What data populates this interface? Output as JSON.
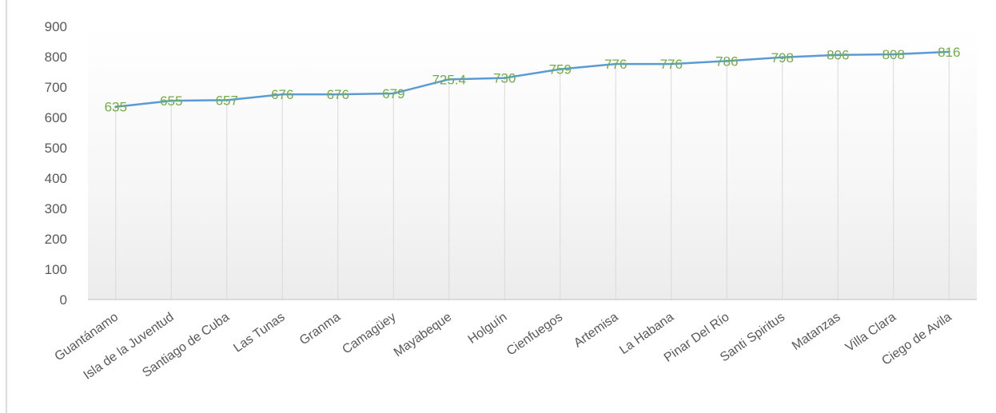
{
  "chart_data": {
    "type": "line",
    "title": "",
    "xlabel": "",
    "ylabel": "",
    "categories": [
      "Guantánamo",
      "Isla de la Juventud",
      "Santiago de Cuba",
      "Las Tunas",
      "Granma",
      "Camagüey",
      "Mayabeque",
      "Holguín",
      "Cienfuegos",
      "Artemisa",
      "La Habana",
      "Pinar Del Río",
      "Santi Spiritus",
      "Matanzas",
      "Villa Clara",
      "Ciego de Avila"
    ],
    "series": [
      {
        "values": [
          635,
          655,
          657,
          676,
          676,
          679,
          725.4,
          730,
          759,
          776,
          776,
          786,
          798,
          806,
          808,
          816
        ],
        "data_labels": [
          "635",
          "655",
          "657",
          "676",
          "676",
          "679",
          "725.4",
          "730",
          "759",
          "776",
          "776",
          "786",
          "798",
          "806",
          "808",
          "816"
        ]
      }
    ],
    "ylim": [
      0,
      900
    ],
    "y_ticks": [
      "0",
      "100",
      "200",
      "300",
      "400",
      "500",
      "600",
      "700",
      "800",
      "900"
    ],
    "grid": "vertical",
    "legend": "none",
    "colors": {
      "line": "#5b9bd5",
      "data_label": "#70ad47",
      "grid": "#d9d9d9",
      "axis_text": "#595959"
    }
  }
}
